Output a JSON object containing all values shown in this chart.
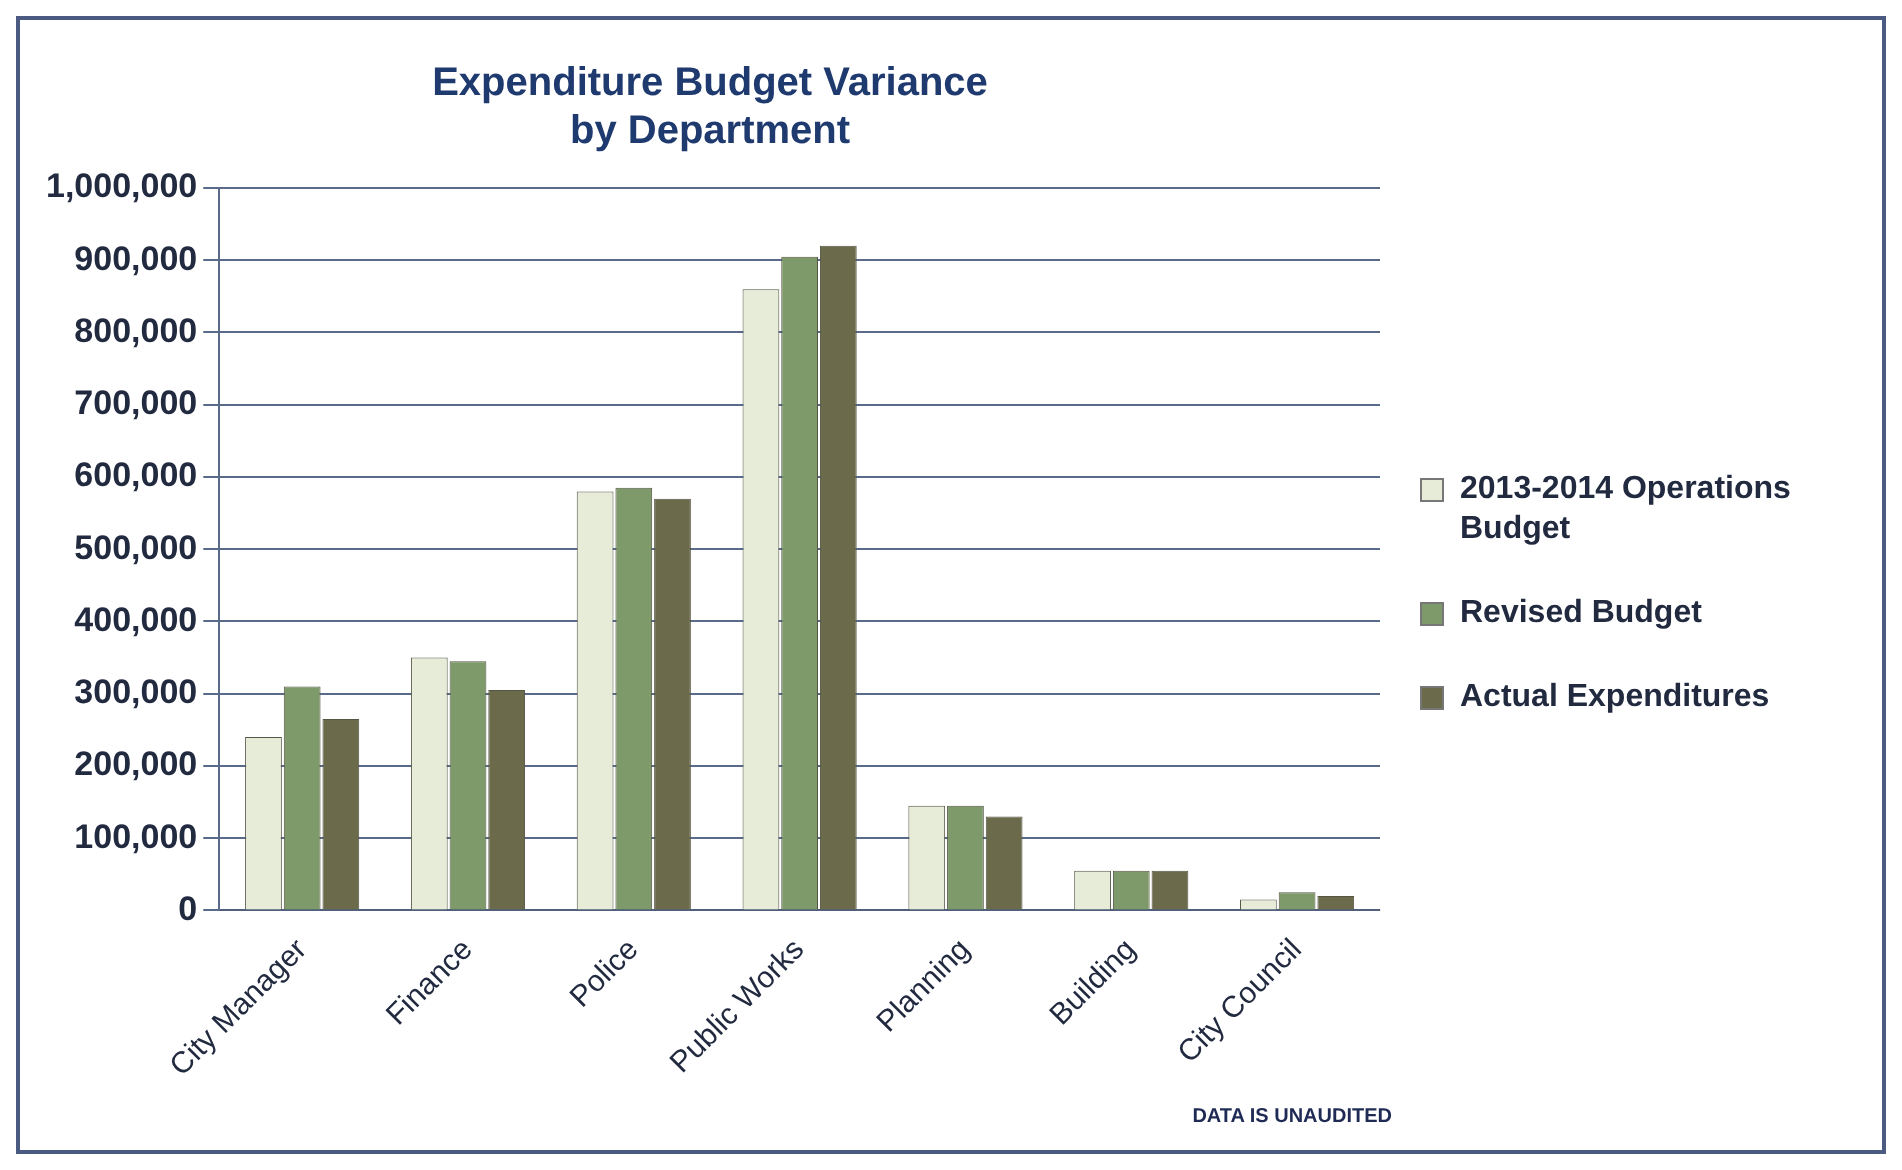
{
  "chart_data": {
    "type": "bar",
    "title": [
      "Expenditure Budget Variance",
      "by Department"
    ],
    "categories": [
      "City Manager",
      "Finance",
      "Police",
      "Public Works",
      "Planning",
      "Building",
      "City Council"
    ],
    "series": [
      {
        "name": "2013-2014 Operations Budget",
        "color": "#e6ecd8",
        "values": [
          240000,
          350000,
          580000,
          860000,
          145000,
          55000,
          15000
        ]
      },
      {
        "name": "Revised Budget",
        "color": "#7f9a6a",
        "values": [
          310000,
          345000,
          585000,
          905000,
          145000,
          55000,
          25000
        ]
      },
      {
        "name": "Actual Expenditures",
        "color": "#6b6a4a",
        "values": [
          265000,
          305000,
          570000,
          920000,
          130000,
          55000,
          20000
        ]
      }
    ],
    "ylim": [
      0,
      1000000
    ],
    "yticks": [
      0,
      {
        "value": 100000,
        "label": "100,000"
      },
      {
        "value": 200000,
        "label": "200,000"
      },
      {
        "value": 300000,
        "label": "300,000"
      },
      {
        "value": 400000,
        "label": "400,000"
      },
      {
        "value": 500000,
        "label": "500,000"
      },
      {
        "value": 600000,
        "label": "600,000"
      },
      {
        "value": 700000,
        "label": "700,000"
      },
      {
        "value": 800000,
        "label": "800,000"
      },
      {
        "value": 900000,
        "label": "900,000"
      },
      {
        "value": 1000000,
        "label": "1,000,000"
      }
    ],
    "grid": "y",
    "legend": "right",
    "annotations": [
      "DATA IS UNAUDITED"
    ]
  }
}
